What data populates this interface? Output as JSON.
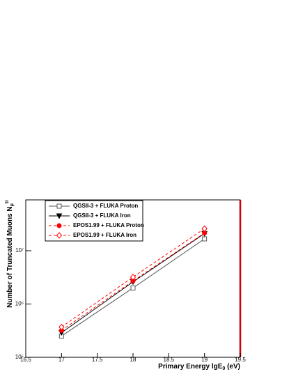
{
  "chart_data": {
    "type": "line",
    "x_label": "Primary Energy lgE",
    "x_label_sub": "0",
    "x_label_tail": " (eV)",
    "y_label": "Number of Truncated Muons N",
    "y_label_sub": "μ",
    "y_label_sup": "tr",
    "x": [
      17,
      18,
      19
    ],
    "series": [
      {
        "name": "QGSII-3 + FLUKA Proton",
        "color": "#555555",
        "marker": "square-open",
        "dash": false,
        "values": [
          250000,
          2000000,
          16700000
        ]
      },
      {
        "name": "QGSII-3 + FLUKA Iron",
        "color": "#000000",
        "marker": "triangle-down",
        "dash": false,
        "values": [
          290000,
          2600000,
          21000000
        ]
      },
      {
        "name": "EPOS1.99 + FLUKA Proton",
        "color": "#ff0000",
        "marker": "circle",
        "dash": true,
        "values": [
          320000,
          2700000,
          21500000
        ]
      },
      {
        "name": "EPOS1.99 + FLUKA Iron",
        "color": "#ff0000",
        "marker": "diamond-open",
        "dash": true,
        "values": [
          370000,
          3200000,
          26000000
        ]
      }
    ],
    "xlim": [
      16.5,
      19.5
    ],
    "xticks": [
      16.5,
      17,
      17.5,
      18,
      18.5,
      19,
      19.5
    ],
    "ylim": [
      100000,
      90000000
    ],
    "log_y": true,
    "yticks": [
      {
        "value": 100000,
        "label": "10⁵"
      },
      {
        "value": 1000000,
        "label": "10⁶"
      },
      {
        "value": 10000000,
        "label": "10⁷"
      }
    ],
    "legend": "top-left"
  }
}
